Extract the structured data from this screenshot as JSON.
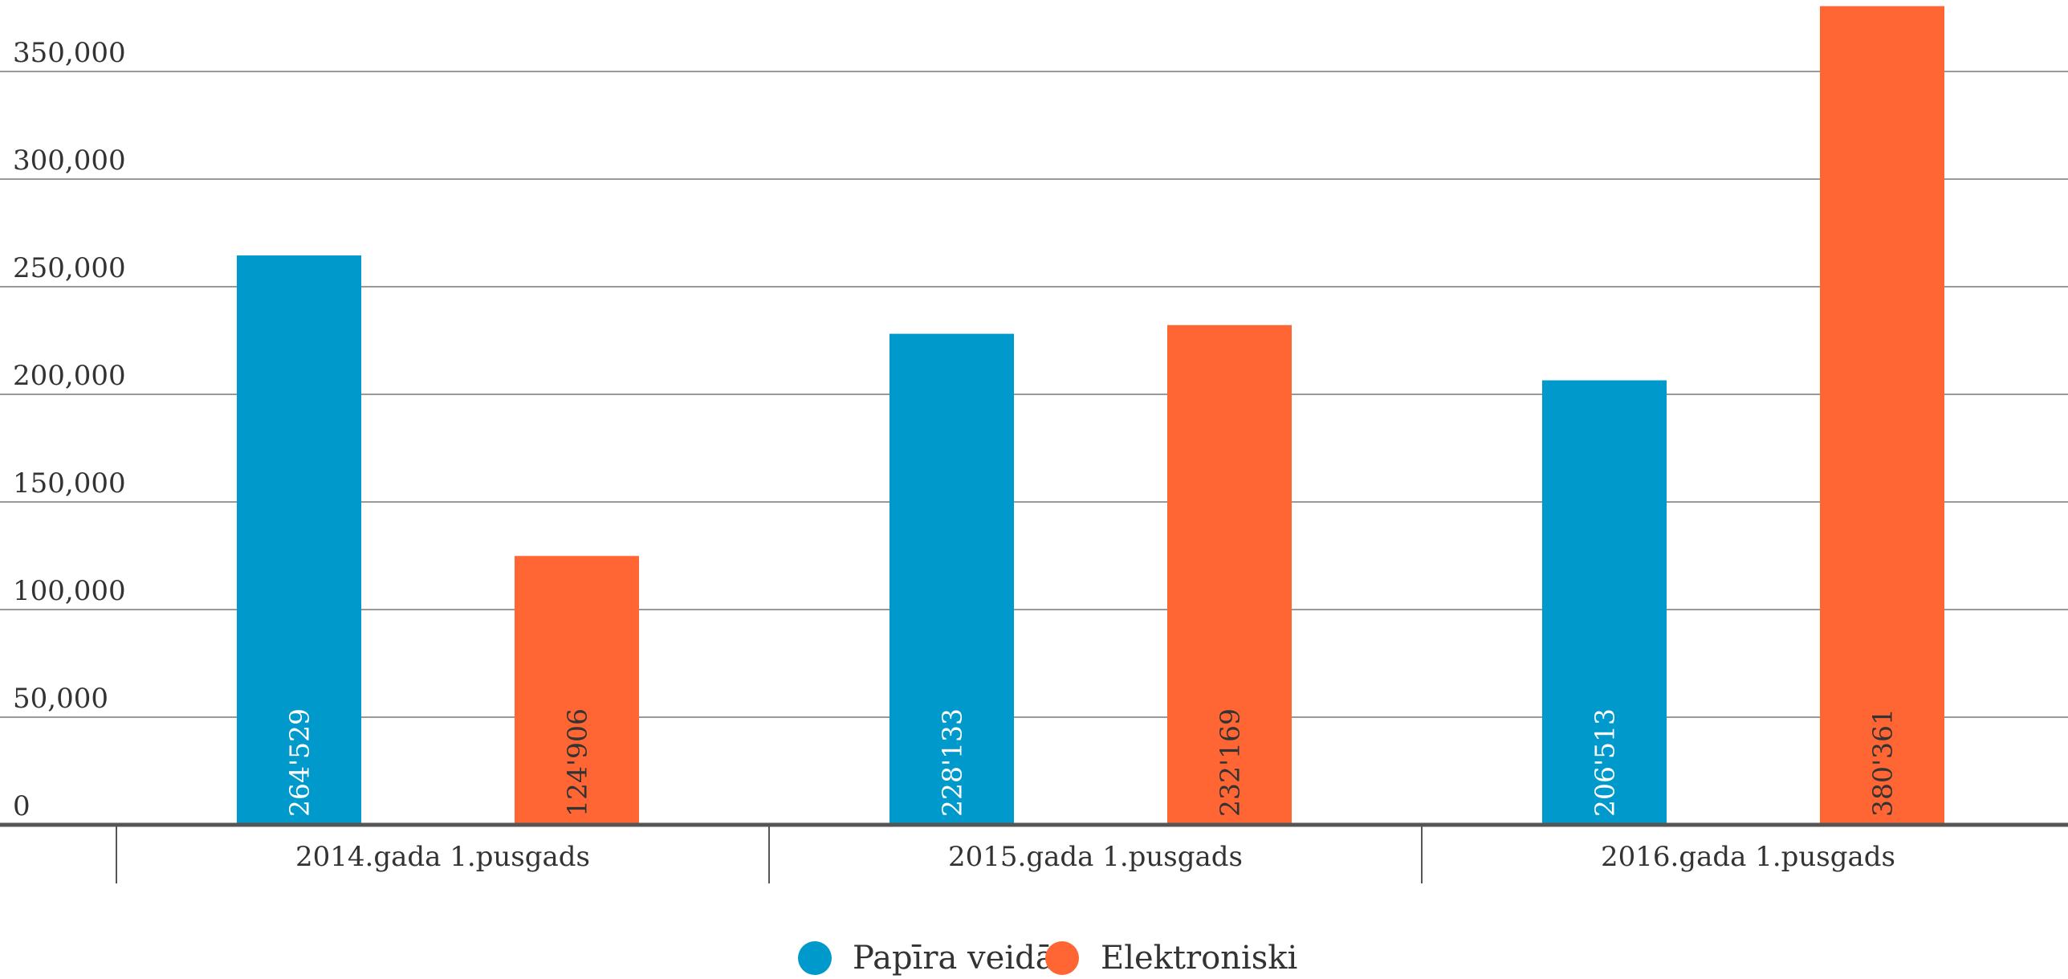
{
  "chart_data": {
    "type": "bar",
    "title": "",
    "xlabel": "",
    "ylabel": "",
    "ylim": [
      0,
      380000
    ],
    "yticks": [
      0,
      50000,
      100000,
      150000,
      200000,
      250000,
      300000,
      350000
    ],
    "ytick_labels": [
      "0",
      "50,000",
      "100,000",
      "150,000",
      "200,000",
      "250,000",
      "300,000",
      "350,000"
    ],
    "categories": [
      "2014.gada 1.pusgads",
      "2015.gada 1.pusgads",
      "2016.gada 1.pusgads"
    ],
    "series": [
      {
        "name": "Papīra veidā",
        "color": "#0099CC",
        "values": [
          264529,
          228133,
          206513
        ],
        "data_labels": [
          "264'529",
          "228'133",
          "206'513"
        ],
        "label_color": "#ffffff"
      },
      {
        "name": "Elektroniski",
        "color": "#FF6633",
        "values": [
          124906,
          232169,
          380361
        ],
        "data_labels": [
          "124'906",
          "232'169",
          "380'361"
        ],
        "label_color": "#333333"
      }
    ],
    "grid": true,
    "legend_position": "bottom-center",
    "data_label_orientation": "vertical, inside base of bar",
    "colors": {
      "grid": "#999999",
      "axis": "#555555",
      "text": "#333333"
    }
  }
}
